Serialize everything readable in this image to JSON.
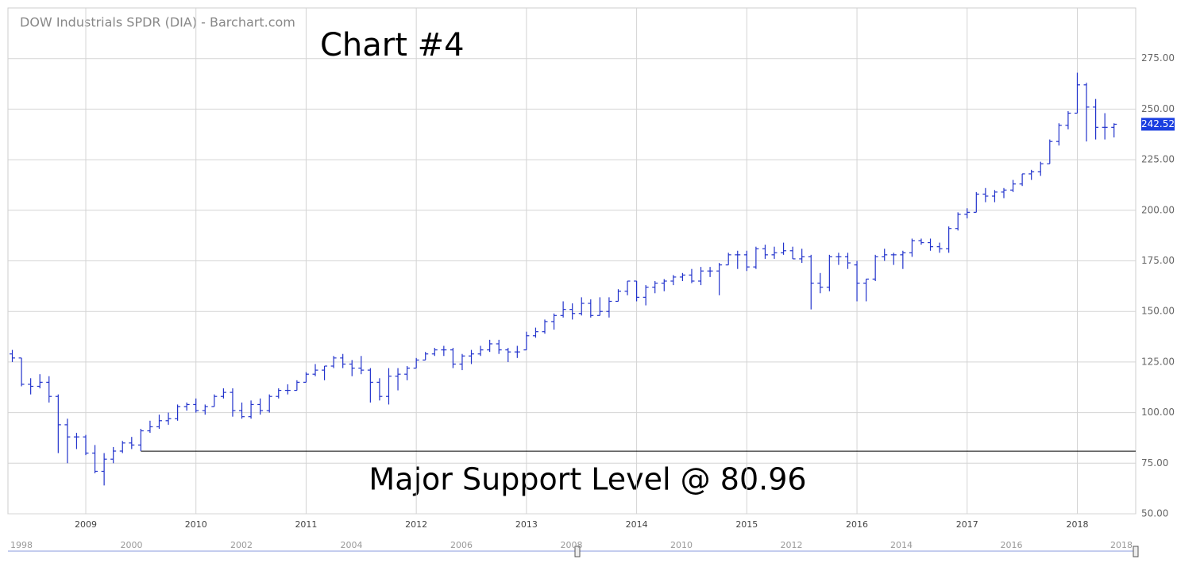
{
  "chart_data": {
    "type": "ohlc",
    "title": "DOW Industrials SPDR (DIA) - Barchart.com",
    "annotation": "Chart #4",
    "support_label": "Major Support Level @ 80.96",
    "support_level": 80.96,
    "last_price": 242.52,
    "color": "#2233cc",
    "grid": true,
    "categories": [
      null,
      null,
      null,
      null,
      null,
      null,
      null,
      null,
      "2009",
      null,
      null,
      null,
      null,
      null,
      null,
      null,
      null,
      null,
      null,
      null,
      "2010",
      null,
      null,
      null,
      null,
      null,
      null,
      null,
      null,
      null,
      null,
      null,
      "2011",
      null,
      null,
      null,
      null,
      null,
      null,
      null,
      null,
      null,
      null,
      null,
      "2012",
      null,
      null,
      null,
      null,
      null,
      null,
      null,
      null,
      null,
      null,
      null,
      "2013",
      null,
      null,
      null,
      null,
      null,
      null,
      null,
      null,
      null,
      null,
      null,
      "2014",
      null,
      null,
      null,
      null,
      null,
      null,
      null,
      null,
      null,
      null,
      null,
      "2015",
      null,
      null,
      null,
      null,
      null,
      null,
      null,
      null,
      null,
      null,
      null,
      "2016",
      null,
      null,
      null,
      null,
      null,
      null,
      null,
      null,
      null,
      null,
      null,
      "2017",
      null,
      null,
      null,
      null,
      null,
      null,
      null,
      null,
      null,
      null,
      null,
      "2018",
      null,
      null,
      null,
      null
    ],
    "open": [
      129,
      127,
      114,
      113,
      115,
      108,
      94,
      88,
      88,
      80,
      71,
      77,
      81,
      85,
      84,
      91,
      93,
      96,
      97,
      103,
      104,
      101,
      103,
      108,
      110,
      101,
      98,
      104,
      101,
      108,
      111,
      111,
      115,
      119,
      121,
      123,
      127,
      124,
      122,
      121,
      115,
      108,
      118,
      119,
      122,
      126,
      129,
      131,
      131,
      124,
      128,
      129,
      131,
      134,
      131,
      130,
      131,
      138,
      140,
      145,
      148,
      151,
      149,
      154,
      148,
      150,
      155,
      160,
      165,
      157,
      162,
      164,
      165,
      167,
      168,
      165,
      170,
      170,
      173,
      178,
      178,
      172,
      181,
      178,
      179,
      180,
      176,
      177,
      164,
      162,
      177,
      177,
      173,
      164,
      166,
      177,
      178,
      178,
      179,
      185,
      184,
      182,
      181,
      191,
      198,
      199,
      208,
      207,
      209,
      210,
      213,
      218,
      219,
      223,
      234,
      242,
      248,
      262,
      251,
      241,
      241
    ],
    "high": [
      131,
      127,
      117,
      119,
      118,
      109,
      97,
      90,
      89,
      84,
      80,
      83,
      86,
      88,
      92,
      96,
      99,
      100,
      104,
      105,
      107,
      104,
      109,
      112,
      112,
      105,
      106,
      107,
      109,
      112,
      114,
      116,
      120,
      124,
      123,
      128,
      129,
      126,
      128,
      122,
      117,
      122,
      122,
      123,
      127,
      130,
      132,
      133,
      132,
      129,
      131,
      133,
      136,
      136,
      132,
      133,
      140,
      142,
      146,
      149,
      155,
      154,
      157,
      156,
      157,
      157,
      161,
      165,
      165,
      163,
      165,
      166,
      168,
      169,
      171,
      172,
      172,
      174,
      179,
      180,
      180,
      182,
      183,
      182,
      184,
      182,
      181,
      178,
      169,
      178,
      179,
      179,
      175,
      166,
      178,
      181,
      179,
      180,
      186,
      186,
      186,
      184,
      192,
      199,
      201,
      209,
      211,
      210,
      211,
      215,
      218,
      220,
      224,
      235,
      243,
      249,
      268,
      263,
      255,
      248,
      243
    ],
    "low": [
      125,
      113,
      109,
      112,
      105,
      80,
      75,
      82,
      79,
      70,
      64,
      75,
      80,
      82,
      81,
      90,
      92,
      94,
      96,
      101,
      100,
      99,
      103,
      107,
      98,
      97,
      97,
      99,
      100,
      107,
      109,
      111,
      115,
      118,
      116,
      122,
      122,
      118,
      119,
      105,
      106,
      104,
      111,
      116,
      122,
      126,
      128,
      128,
      122,
      121,
      124,
      128,
      130,
      129,
      125,
      127,
      131,
      137,
      139,
      141,
      147,
      146,
      148,
      147,
      148,
      147,
      155,
      158,
      155,
      153,
      159,
      160,
      163,
      165,
      164,
      163,
      167,
      158,
      173,
      171,
      170,
      171,
      176,
      176,
      178,
      176,
      174,
      151,
      159,
      160,
      173,
      171,
      155,
      155,
      165,
      175,
      173,
      171,
      177,
      183,
      180,
      179,
      179,
      190,
      196,
      199,
      204,
      204,
      206,
      209,
      212,
      215,
      217,
      223,
      232,
      240,
      248,
      234,
      235,
      235,
      236
    ],
    "close": [
      127,
      114,
      113,
      115,
      108,
      94,
      88,
      88,
      80,
      71,
      77,
      81,
      85,
      84,
      91,
      93,
      96,
      97,
      103,
      104,
      101,
      103,
      108,
      110,
      101,
      98,
      104,
      101,
      108,
      111,
      111,
      115,
      119,
      121,
      123,
      127,
      124,
      122,
      121,
      115,
      108,
      118,
      119,
      122,
      126,
      129,
      131,
      131,
      124,
      128,
      129,
      131,
      134,
      131,
      130,
      130,
      138,
      140,
      145,
      148,
      151,
      149,
      154,
      148,
      150,
      155,
      160,
      165,
      157,
      162,
      164,
      165,
      167,
      168,
      165,
      170,
      170,
      173,
      178,
      178,
      172,
      181,
      178,
      179,
      180,
      176,
      177,
      164,
      162,
      177,
      177,
      174,
      164,
      166,
      177,
      178,
      178,
      179,
      185,
      184,
      182,
      181,
      191,
      198,
      199,
      208,
      207,
      209,
      210,
      213,
      218,
      219,
      223,
      234,
      242,
      248,
      262,
      251,
      241,
      241,
      242.52
    ],
    "ylim": [
      50,
      300
    ],
    "yticks": [
      {
        "value": 50,
        "label": "50.00"
      },
      {
        "value": 75,
        "label": "75.00"
      },
      {
        "value": 100,
        "label": "100.00"
      },
      {
        "value": 125,
        "label": "125.00"
      },
      {
        "value": 150,
        "label": "150.00"
      },
      {
        "value": 175,
        "label": "175.00"
      },
      {
        "value": 200,
        "label": "200.00"
      },
      {
        "value": 225,
        "label": "225.00"
      },
      {
        "value": 250,
        "label": "250.00"
      },
      {
        "value": 275,
        "label": "275.00"
      }
    ],
    "navigator_labels": [
      "1998",
      "2000",
      "2002",
      "2004",
      "2006",
      "2008",
      "2010",
      "2012",
      "2014",
      "2016",
      "2018"
    ]
  }
}
